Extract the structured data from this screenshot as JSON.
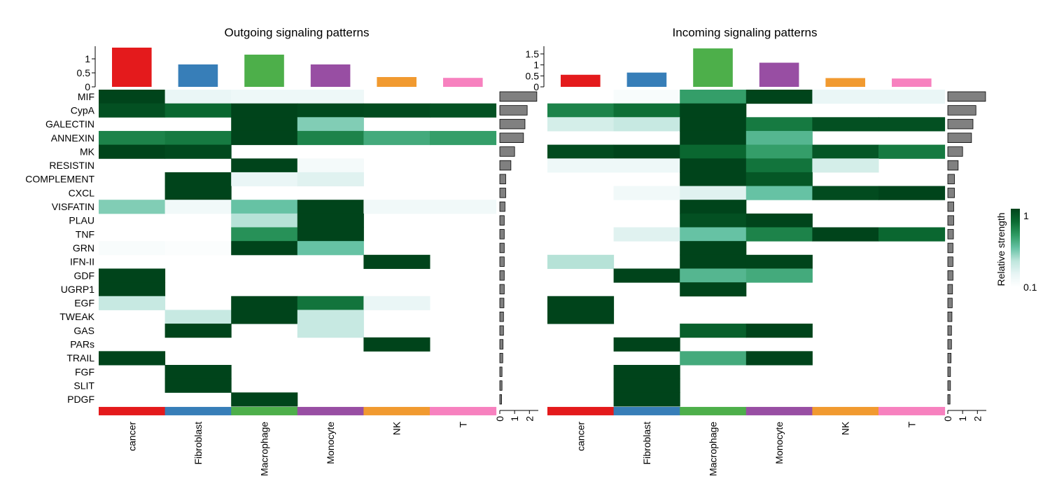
{
  "chart_data": [
    {
      "type": "heatmap",
      "title": "Outgoing signaling patterns",
      "rows": [
        "MIF",
        "CypA",
        "GALECTIN",
        "ANNEXIN",
        "MK",
        "RESISTIN",
        "COMPLEMENT",
        "CXCL",
        "VISFATIN",
        "PLAU",
        "TNF",
        "GRN",
        "IFN-II",
        "GDF",
        "UGRP1",
        "EGF",
        "TWEAK",
        "GAS",
        "PARs",
        "TRAIL",
        "FGF",
        "SLIT",
        "PDGF"
      ],
      "columns": [
        "cancer",
        "Fibroblast",
        "Macrophage",
        "Monocyte",
        "NK",
        "T"
      ],
      "values": [
        [
          1.0,
          0.15,
          0.12,
          0.12,
          null,
          null
        ],
        [
          0.95,
          0.85,
          1.0,
          0.98,
          0.97,
          0.94
        ],
        [
          null,
          null,
          1.0,
          0.45,
          null,
          null
        ],
        [
          0.75,
          0.78,
          1.0,
          0.75,
          0.6,
          0.65
        ],
        [
          1.0,
          0.98,
          null,
          null,
          null,
          null
        ],
        [
          null,
          null,
          1.0,
          0.08,
          null,
          null
        ],
        [
          null,
          1.0,
          0.15,
          0.2,
          null,
          null
        ],
        [
          null,
          1.0,
          null,
          null,
          null,
          null
        ],
        [
          0.45,
          0.1,
          0.5,
          1.0,
          0.1,
          0.1
        ],
        [
          null,
          null,
          0.35,
          1.0,
          null,
          null
        ],
        [
          null,
          null,
          0.7,
          1.0,
          null,
          null
        ],
        [
          0.05,
          0.03,
          1.0,
          0.5,
          null,
          null
        ],
        [
          null,
          null,
          null,
          null,
          1.0,
          null
        ],
        [
          1.0,
          null,
          null,
          null,
          null,
          null
        ],
        [
          1.0,
          null,
          null,
          null,
          null,
          null
        ],
        [
          0.3,
          null,
          1.0,
          0.8,
          0.15,
          null
        ],
        [
          null,
          0.3,
          1.0,
          0.3,
          null,
          null
        ],
        [
          null,
          1.0,
          null,
          0.3,
          null,
          null
        ],
        [
          null,
          null,
          null,
          null,
          1.0,
          null
        ],
        [
          1.0,
          null,
          null,
          null,
          null,
          null
        ],
        [
          null,
          1.0,
          null,
          null,
          null,
          null
        ],
        [
          null,
          1.0,
          null,
          null,
          null,
          null
        ],
        [
          null,
          null,
          1.0,
          null,
          null,
          null
        ]
      ],
      "column_totals": [
        1.4,
        0.8,
        1.15,
        0.8,
        0.35,
        0.32
      ],
      "column_axis": {
        "ticks": [
          "0",
          "0.5",
          "1"
        ],
        "range": [
          0,
          1.45
        ]
      },
      "row_totals": [
        2.5,
        1.85,
        1.7,
        1.6,
        1.0,
        0.75,
        0.4,
        0.4,
        0.35,
        0.3,
        0.3,
        0.3,
        0.3,
        0.3,
        0.3,
        0.28,
        0.25,
        0.25,
        0.22,
        0.2,
        0.15,
        0.15,
        0.12
      ],
      "row_axis": {
        "ticks": [
          "0",
          "1",
          "2"
        ],
        "range": [
          0,
          2.6
        ]
      }
    },
    {
      "type": "heatmap",
      "title": "Incoming signaling patterns",
      "rows": [
        "MIF",
        "CypA",
        "GALECTIN",
        "ANNEXIN",
        "MK",
        "RESISTIN",
        "COMPLEMENT",
        "CXCL",
        "VISFATIN",
        "PLAU",
        "TNF",
        "GRN",
        "IFN-II",
        "GDF",
        "UGRP1",
        "EGF",
        "TWEAK",
        "GAS",
        "PARs",
        "TRAIL",
        "FGF",
        "SLIT",
        "PDGF"
      ],
      "columns": [
        "cancer",
        "Fibroblast",
        "Macrophage",
        "Monocyte",
        "NK",
        "T"
      ],
      "values": [
        [
          null,
          0.05,
          0.65,
          1.0,
          0.15,
          0.15
        ],
        [
          0.75,
          0.82,
          1.0,
          null,
          null,
          null
        ],
        [
          0.25,
          0.3,
          1.0,
          0.78,
          0.95,
          0.95
        ],
        [
          null,
          null,
          1.0,
          0.55,
          null,
          null
        ],
        [
          0.97,
          1.0,
          0.85,
          0.65,
          0.92,
          0.78
        ],
        [
          0.12,
          0.12,
          1.0,
          0.8,
          0.25,
          null
        ],
        [
          null,
          null,
          1.0,
          0.92,
          null,
          null
        ],
        [
          null,
          0.1,
          0.2,
          0.5,
          0.97,
          1.0
        ],
        [
          null,
          null,
          1.0,
          null,
          null,
          null
        ],
        [
          null,
          null,
          0.95,
          1.0,
          null,
          null
        ],
        [
          null,
          0.2,
          0.5,
          0.75,
          1.0,
          0.85
        ],
        [
          null,
          null,
          1.0,
          null,
          null,
          null
        ],
        [
          0.35,
          null,
          1.0,
          1.0,
          null,
          null
        ],
        [
          null,
          1.0,
          0.55,
          0.6,
          null,
          null
        ],
        [
          null,
          null,
          1.0,
          null,
          null,
          null
        ],
        [
          1.0,
          null,
          null,
          null,
          null,
          null
        ],
        [
          1.0,
          null,
          null,
          null,
          null,
          null
        ],
        [
          null,
          null,
          0.88,
          1.0,
          null,
          null
        ],
        [
          null,
          1.0,
          null,
          null,
          null,
          null
        ],
        [
          null,
          null,
          0.6,
          1.0,
          null,
          null
        ],
        [
          null,
          1.0,
          null,
          null,
          null,
          null
        ],
        [
          null,
          1.0,
          null,
          null,
          null,
          null
        ],
        [
          null,
          1.0,
          null,
          null,
          null,
          null
        ]
      ],
      "column_totals": [
        0.55,
        0.65,
        1.75,
        1.1,
        0.4,
        0.38
      ],
      "column_axis": {
        "ticks": [
          "0",
          "0.5",
          "1",
          "1.5"
        ],
        "range": [
          0,
          1.85
        ]
      },
      "row_totals": [
        2.55,
        1.9,
        1.7,
        1.6,
        1.0,
        0.7,
        0.45,
        0.45,
        0.4,
        0.4,
        0.38,
        0.35,
        0.35,
        0.35,
        0.32,
        0.3,
        0.28,
        0.25,
        0.25,
        0.22,
        0.18,
        0.18,
        0.15
      ],
      "row_axis": {
        "ticks": [
          "0",
          "1",
          "2"
        ],
        "range": [
          0,
          2.6
        ]
      }
    }
  ],
  "legend": {
    "title": "Relative strength",
    "max_label": "1",
    "min_label": "0.1",
    "colors": [
      "#ffffff",
      "#e8f5f5",
      "#bfe6dd",
      "#66c2a4",
      "#2e9a62",
      "#0b6b32",
      "#00441b"
    ]
  },
  "cell_type_colors": [
    "#e41a1c",
    "#377eb8",
    "#4daf4a",
    "#984ea3",
    "#f19a30",
    "#f781bf"
  ],
  "bar_color": "#808080"
}
